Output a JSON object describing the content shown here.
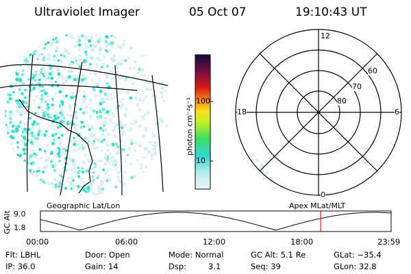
{
  "header": {
    "title": "Ultraviolet Imager",
    "date": "05 Oct 07",
    "time": "19:10:43 UT"
  },
  "colorbar": {
    "unit_label": "photon cm⁻²s⁻¹",
    "ticks": [
      "100",
      "10"
    ]
  },
  "polar": {
    "mlt_labels": [
      "12",
      "18",
      "6",
      "0"
    ],
    "lat_labels": [
      "60",
      "70",
      "80"
    ]
  },
  "projections": {
    "left": "Geographic Lat/Lon",
    "right": "Apex MLat/MLT"
  },
  "orbit": {
    "y_label": "GC Alt",
    "y_ticks": [
      "9.0",
      "1.8"
    ],
    "x_ticks": [
      "00:00",
      "06:00",
      "12:00",
      "18:00",
      "23:59"
    ],
    "current_marker_hour": 19.18
  },
  "status": {
    "flt": "Flt: LBHL",
    "ip": "IP: 36.0",
    "door": "Door: Open",
    "gain": "Gain: 14",
    "mode": "Mode: Normal",
    "dsp_label": "Dsp:",
    "dsp_value": "3.1",
    "gc_alt": "GC Alt: 5.1 Re",
    "seq": "Seq: 39",
    "glat": "GLat: −35.4",
    "glon": "GLon:  32.8"
  },
  "colors": {
    "low": "#d9eef0",
    "mid": "#2fe0c0",
    "high": "#2a1a5a",
    "marker": "#cc2222"
  }
}
